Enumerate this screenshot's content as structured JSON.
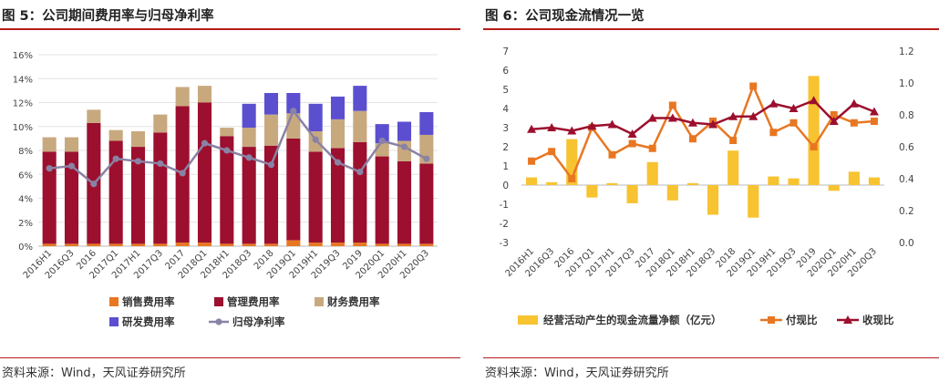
{
  "colors": {
    "accent_rule": "#b71c1c",
    "sales": "#e87722",
    "mgmt": "#9c0f2e",
    "fin": "#c8a97e",
    "rd": "#5b4fd0",
    "np_line": "#8a82a4",
    "net_cf": "#f7c331",
    "pay_ratio": "#e87722",
    "coll_ratio": "#9c0f2e"
  },
  "left": {
    "title": "图 5：公司期间费用率与归母净利率",
    "source": "资料来源：Wind，天风证券研究所",
    "chart_data": {
      "type": "bar",
      "stacked": true,
      "categories": [
        "2016H1",
        "2016Q3",
        "2016",
        "2017Q1",
        "2017H1",
        "2017Q3",
        "2017",
        "2018Q1",
        "2018H1",
        "2018Q3",
        "2018",
        "2019Q1",
        "2019H1",
        "2019Q3",
        "2019",
        "2020Q1",
        "2020H1",
        "2020Q3"
      ],
      "ylim": [
        0,
        16
      ],
      "ytick_labels": [
        "0%",
        "2%",
        "4%",
        "6%",
        "8%",
        "10%",
        "12%",
        "14%",
        "16%"
      ],
      "series": [
        {
          "name": "销售费用率",
          "key": "sales",
          "type": "bar",
          "values": [
            0.2,
            0.2,
            0.2,
            0.2,
            0.2,
            0.2,
            0.3,
            0.3,
            0.2,
            0.2,
            0.2,
            0.5,
            0.3,
            0.3,
            0.3,
            0.2,
            0.2,
            0.2
          ]
        },
        {
          "name": "管理费用率",
          "key": "mgmt",
          "type": "bar",
          "values": [
            7.7,
            7.7,
            10.1,
            8.6,
            8.1,
            9.3,
            11.4,
            11.7,
            9.0,
            8.1,
            8.2,
            8.5,
            7.6,
            7.9,
            8.4,
            7.3,
            6.9,
            6.7
          ]
        },
        {
          "name": "财务费用率",
          "key": "fin",
          "type": "bar",
          "values": [
            1.2,
            1.2,
            1.1,
            0.9,
            1.3,
            1.5,
            1.6,
            1.4,
            0.7,
            1.6,
            2.6,
            2.1,
            1.7,
            2.4,
            2.6,
            1.1,
            1.7,
            2.4
          ]
        },
        {
          "name": "研发费用率",
          "key": "rd",
          "type": "bar",
          "values": [
            0,
            0,
            0,
            0,
            0,
            0,
            0,
            0,
            0,
            2.0,
            1.8,
            1.7,
            2.3,
            1.9,
            2.1,
            1.6,
            1.6,
            1.9
          ]
        },
        {
          "name": "归母净利率",
          "key": "np_line",
          "type": "line",
          "values": [
            6.5,
            6.7,
            5.2,
            7.3,
            7.1,
            6.9,
            6.1,
            8.6,
            8.0,
            7.4,
            6.8,
            11.3,
            8.9,
            7.0,
            6.2,
            8.8,
            8.3,
            7.3
          ]
        }
      ],
      "legend": [
        {
          "key": "sales",
          "label": "销售费用率",
          "shape": "square"
        },
        {
          "key": "mgmt",
          "label": "管理费用率",
          "shape": "square"
        },
        {
          "key": "fin",
          "label": "财务费用率",
          "shape": "square"
        },
        {
          "key": "rd",
          "label": "研发费用率",
          "shape": "square"
        },
        {
          "key": "np_line",
          "label": "归母净利率",
          "shape": "line-dot"
        }
      ]
    }
  },
  "right": {
    "title": "图 6：公司现金流情况一览",
    "source": "资料来源：Wind，天风证券研究所",
    "chart_data": {
      "type": "bar+line",
      "categories": [
        "2016H1",
        "2016Q3",
        "2016",
        "2017Q1",
        "2017H1",
        "2017Q3",
        "2017",
        "2018Q1",
        "2018H1",
        "2018Q3",
        "2018",
        "2019Q1",
        "2019H1",
        "2019Q3",
        "2019",
        "2020Q1",
        "2020H1",
        "2020Q3"
      ],
      "ylim_left": [
        -3,
        7
      ],
      "ylim_right": [
        0,
        1.2
      ],
      "left_ticks": [
        "-3",
        "-2",
        "-1",
        "0",
        "1",
        "2",
        "3",
        "4",
        "5",
        "6",
        "7"
      ],
      "right_ticks": [
        "0.0",
        "0.2",
        "0.4",
        "0.6",
        "0.8",
        "1.0",
        "1.2"
      ],
      "series": [
        {
          "name": "经营活动产生的现金流量净额（亿元）",
          "key": "net_cf",
          "type": "bar",
          "axis": "left",
          "values": [
            0.4,
            0.15,
            2.4,
            -0.65,
            0.1,
            -0.95,
            1.2,
            -0.8,
            0.1,
            -1.55,
            1.8,
            -1.7,
            0.45,
            0.35,
            5.7,
            -0.3,
            0.7,
            0.4
          ]
        },
        {
          "name": "付现比",
          "key": "pay_ratio",
          "type": "line",
          "marker": "square",
          "axis": "right",
          "values": [
            0.51,
            0.57,
            0.4,
            0.72,
            0.55,
            0.62,
            0.59,
            0.86,
            0.65,
            0.76,
            0.64,
            0.98,
            0.69,
            0.75,
            0.6,
            0.8,
            0.75,
            0.76
          ]
        },
        {
          "name": "收现比",
          "key": "coll_ratio",
          "type": "line",
          "marker": "triangle",
          "axis": "right",
          "values": [
            0.71,
            0.72,
            0.7,
            0.73,
            0.74,
            0.68,
            0.78,
            0.78,
            0.75,
            0.74,
            0.79,
            0.79,
            0.87,
            0.84,
            0.89,
            0.76,
            0.87,
            0.82
          ]
        }
      ],
      "legend": [
        {
          "key": "net_cf",
          "label": "经营活动产生的现金流量净额（亿元）",
          "shape": "square"
        },
        {
          "key": "pay_ratio",
          "label": "付现比",
          "shape": "line-square"
        },
        {
          "key": "coll_ratio",
          "label": "收现比",
          "shape": "line-triangle"
        }
      ]
    }
  }
}
